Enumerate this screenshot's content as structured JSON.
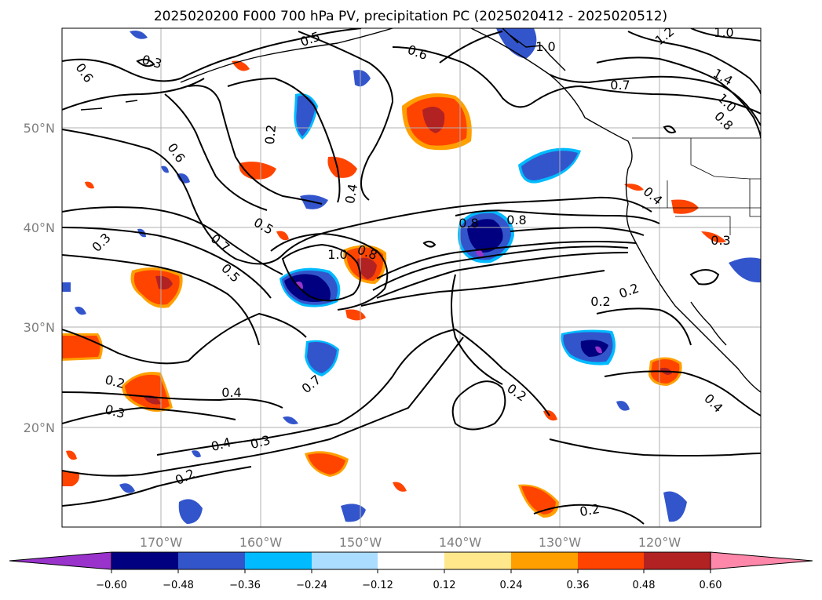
{
  "title": "2025020200 F000 700 hPa PV, precipitation PC (2025020412 - 2025020512)",
  "lat_labels": [
    "50°N",
    "40°N",
    "30°N",
    "20°N"
  ],
  "lon_labels": [
    "170°W",
    "160°W",
    "150°W",
    "140°W",
    "130°W",
    "120°W"
  ],
  "colorbar": {
    "ticks": [
      "−0.60",
      "−0.48",
      "−0.36",
      "−0.24",
      "−0.12",
      "0.12",
      "0.24",
      "0.36",
      "0.48",
      "0.60"
    ],
    "colors": [
      "#9933cc",
      "#000080",
      "#3355cc",
      "#00bbff",
      "#aaddff",
      "#ffffff",
      "#ffe88c",
      "#ffa000",
      "#ff4400",
      "#b22222",
      "#ff88aa"
    ]
  },
  "contour_labels": [
    "0.6",
    "0.5",
    "0.6",
    "1.0",
    "1.2",
    "1.0",
    "1.4",
    "1.0",
    "0.8",
    "0.7",
    "0.2",
    "0.6",
    "0.4",
    "0.5",
    "0.4",
    "0.8",
    "0.3",
    "0.7",
    "0.5",
    "1.0",
    "0.8",
    "0.8",
    "0.3",
    "0.2",
    "0.2",
    "0.2",
    "0.4",
    "0.2",
    "0.3",
    "0.7",
    "0.4",
    "0.3",
    "0.2",
    "0.4",
    "0.2",
    "0.3"
  ]
}
